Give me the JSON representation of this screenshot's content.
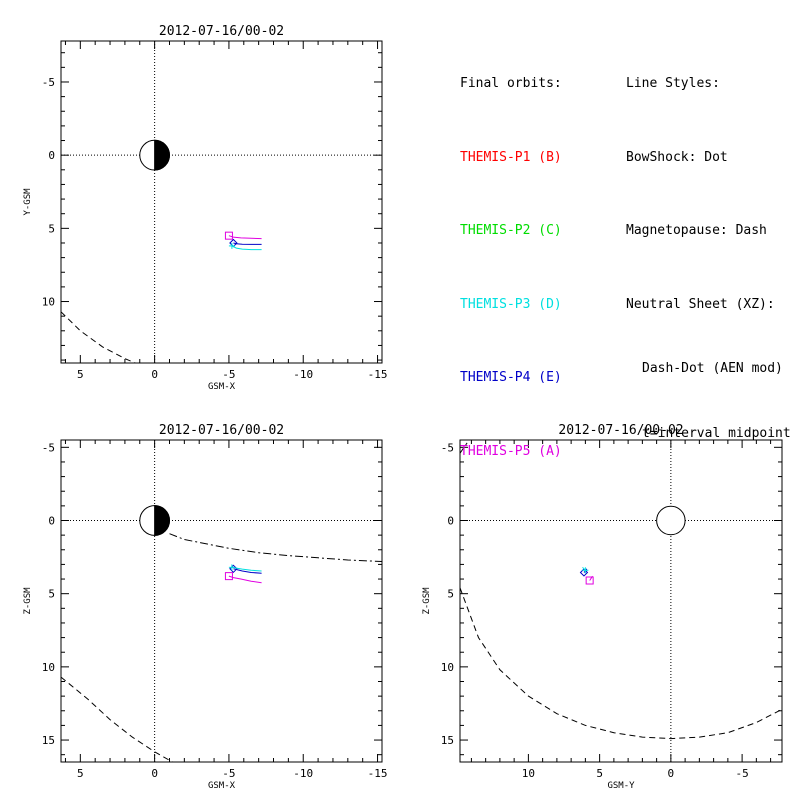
{
  "legend": {
    "orbits_title": "Final orbits:",
    "styles_title": "Line Styles:",
    "items": [
      {
        "label": "THEMIS-P1 (B)",
        "color": "#ff0000"
      },
      {
        "label": "THEMIS-P2 (C)",
        "color": "#00dd00"
      },
      {
        "label": "THEMIS-P3 (D)",
        "color": "#00e0e0"
      },
      {
        "label": "THEMIS-P4 (E)",
        "color": "#0000c8"
      },
      {
        "label": "THEMIS-P5 (A)",
        "color": "#e000e0"
      }
    ],
    "style_lines": [
      "BowShock: Dot",
      "Magnetopause: Dash",
      "Neutral Sheet (XZ):",
      "Dash-Dot (AEN mod)",
      "t=interval midpoint"
    ]
  },
  "chart_data": [
    {
      "id": "xy",
      "type": "line",
      "title": "2012-07-16/00-02",
      "xlabel": "GSM-X",
      "ylabel": "Y-GSM",
      "xlim": [
        6.3,
        -15.3
      ],
      "ylim": [
        -7.8,
        14.2
      ],
      "xticks": [
        5,
        0,
        -5,
        -10,
        -15
      ],
      "xtick_labels": [
        "5",
        "0",
        "-5",
        "-10",
        "-15"
      ],
      "yticks": [
        -5,
        0,
        5,
        10
      ],
      "ytick_labels": [
        "-5",
        "0",
        "5",
        "10"
      ],
      "earth": {
        "x": 0,
        "y": 0,
        "r": 1,
        "night_side": "negative-x"
      },
      "boundaries": [
        {
          "name": "magnetopause",
          "style": "dash",
          "x": [
            6.3,
            5.0,
            3.5,
            2.0,
            1.3
          ],
          "y": [
            10.7,
            12.0,
            13.1,
            13.9,
            14.2
          ]
        }
      ],
      "series": [
        {
          "name": "THEMIS-P5 (A)",
          "color": "#e000e0",
          "x": [
            -7.2,
            -6.5,
            -5.8,
            -5.3,
            -5.0
          ],
          "y": [
            5.7,
            5.68,
            5.65,
            5.6,
            5.5
          ],
          "marker": "square"
        },
        {
          "name": "THEMIS-P4 (E)",
          "color": "#0000c8",
          "x": [
            -7.2,
            -6.5,
            -5.9,
            -5.5,
            -5.3
          ],
          "y": [
            6.1,
            6.1,
            6.08,
            6.05,
            6.0
          ],
          "marker": "diamond"
        },
        {
          "name": "THEMIS-P3 (D)",
          "color": "#00e0e0",
          "x": [
            -7.2,
            -6.5,
            -5.9,
            -5.5,
            -5.2
          ],
          "y": [
            6.45,
            6.45,
            6.42,
            6.35,
            6.2
          ],
          "marker": "plus"
        }
      ]
    },
    {
      "id": "xz",
      "type": "line",
      "title": "2012-07-16/00-02",
      "xlabel": "GSM-X",
      "ylabel": "Z-GSM",
      "xlim": [
        6.3,
        -15.3
      ],
      "ylim": [
        -5.5,
        16.5
      ],
      "xticks": [
        5,
        0,
        -5,
        -10,
        -15
      ],
      "xtick_labels": [
        "5",
        "0",
        "-5",
        "-10",
        "-15"
      ],
      "yticks": [
        -5,
        0,
        5,
        10,
        15
      ],
      "ytick_labels": [
        "-5",
        "0",
        "5",
        "10",
        "15"
      ],
      "earth": {
        "x": 0,
        "y": 0,
        "r": 1,
        "night_side": "negative-x"
      },
      "boundaries": [
        {
          "name": "magnetopause",
          "style": "dash",
          "x": [
            6.3,
            4.5,
            3.0,
            1.5,
            0.0,
            -1.2
          ],
          "y": [
            10.7,
            12.2,
            13.6,
            14.8,
            15.8,
            16.5
          ]
        },
        {
          "name": "neutral sheet",
          "style": "dashdot",
          "x": [
            -1.0,
            -2.0,
            -3.5,
            -5.0,
            -7.0,
            -9.0,
            -11.0,
            -13.0,
            -15.3
          ],
          "y": [
            0.9,
            1.3,
            1.6,
            1.9,
            2.2,
            2.4,
            2.55,
            2.7,
            2.8
          ]
        }
      ],
      "series": [
        {
          "name": "THEMIS-P5 (A)",
          "color": "#e000e0",
          "x": [
            -7.2,
            -6.5,
            -5.8,
            -5.3,
            -5.0
          ],
          "y": [
            4.25,
            4.15,
            4.0,
            3.9,
            3.8
          ],
          "marker": "square"
        },
        {
          "name": "THEMIS-P4 (E)",
          "color": "#0000c8",
          "x": [
            -7.2,
            -6.5,
            -5.9,
            -5.5,
            -5.3
          ],
          "y": [
            3.6,
            3.55,
            3.45,
            3.35,
            3.3
          ],
          "marker": "diamond"
        },
        {
          "name": "THEMIS-P3 (D)",
          "color": "#00e0e0",
          "x": [
            -7.2,
            -6.5,
            -5.9,
            -5.5,
            -5.2
          ],
          "y": [
            3.45,
            3.4,
            3.32,
            3.25,
            3.2
          ],
          "marker": "plus"
        }
      ]
    },
    {
      "id": "yz",
      "type": "line",
      "title": "2012-07-16/00-02",
      "xlabel": "GSM-Y",
      "ylabel": "Z-GSM",
      "xlim": [
        14.8,
        -7.8
      ],
      "ylim": [
        -5.5,
        16.5
      ],
      "xticks": [
        10,
        5,
        0,
        -5
      ],
      "xtick_labels": [
        "10",
        "5",
        "0",
        "-5"
      ],
      "yticks": [
        -5,
        0,
        5,
        10,
        15
      ],
      "ytick_labels": [
        "-5",
        "0",
        "5",
        "10",
        "15"
      ],
      "earth": {
        "x": 0,
        "y": 0,
        "r": 1,
        "night_side": "none"
      },
      "boundaries": [
        {
          "name": "magnetopause",
          "style": "dash",
          "x": [
            14.8,
            13.5,
            12.0,
            10.0,
            8.0,
            6.0,
            4.0,
            2.0,
            0.0,
            -2.0,
            -4.0,
            -6.0,
            -7.8
          ],
          "y": [
            4.6,
            8.0,
            10.2,
            12.0,
            13.2,
            14.0,
            14.5,
            14.8,
            14.9,
            14.8,
            14.5,
            13.8,
            12.9
          ]
        },
        {
          "name": "magnetopause-lower",
          "style": "dash",
          "x": [
            14.8,
            14.3
          ],
          "y": [
            -4.6,
            -5.3
          ]
        }
      ],
      "series": [
        {
          "name": "THEMIS-P5 (A)",
          "color": "#e000e0",
          "x": [
            5.5,
            5.6,
            5.7
          ],
          "y": [
            3.8,
            3.95,
            4.1
          ],
          "marker": "square"
        },
        {
          "name": "THEMIS-P4 (E)",
          "color": "#0000c8",
          "x": [
            5.9,
            6.0,
            6.1
          ],
          "y": [
            3.3,
            3.45,
            3.55
          ],
          "marker": "diamond"
        },
        {
          "name": "THEMIS-P3 (D)",
          "color": "#00e0e0",
          "x": [
            6.2,
            6.1,
            6.0
          ],
          "y": [
            3.2,
            3.3,
            3.4
          ],
          "marker": "plus"
        }
      ]
    }
  ]
}
